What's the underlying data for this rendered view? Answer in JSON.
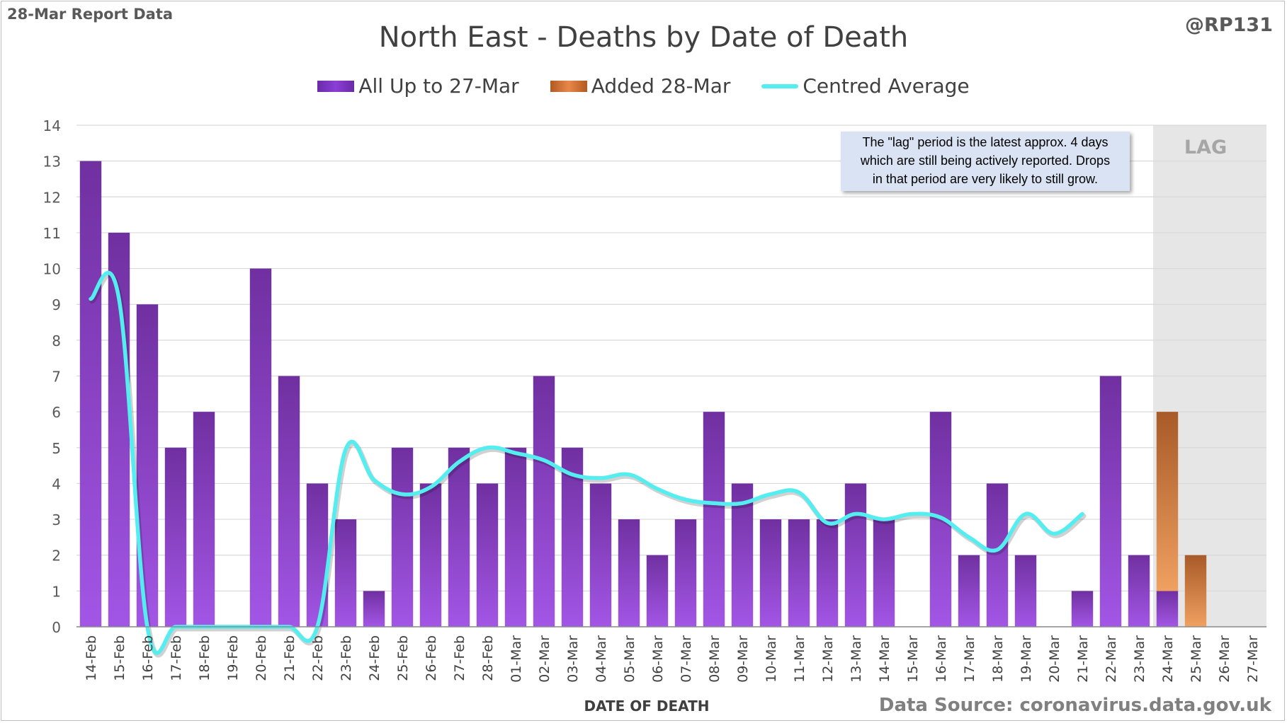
{
  "header": {
    "report_label": "28-Mar Report Data",
    "handle": "@RP131"
  },
  "footer": {
    "source": "Data Source: coronavirus.data.gov.uk"
  },
  "note": {
    "lines": [
      "The \"lag\" period is the latest approx. 4 days",
      "which are still being actively reported.  Drops",
      "in that period are very likely to still grow."
    ]
  },
  "lag_label": "LAG",
  "colors": {
    "bar_purple_top": "#7030a0",
    "bar_purple_bottom": "#a256e6",
    "bar_orange_top": "#a85a28",
    "bar_orange_bottom": "#f0a060",
    "average_line": "#55eef0",
    "lag_shade": "#e6e6e6",
    "grid": "#d9d9d9"
  },
  "chart_data": {
    "type": "bar",
    "title": "North East - Deaths by Date of Death",
    "xlabel": "DATE OF DEATH",
    "ylabel": "",
    "ylim": [
      0,
      14
    ],
    "yticks": [
      0,
      1,
      2,
      3,
      4,
      5,
      6,
      7,
      8,
      9,
      10,
      11,
      12,
      13,
      14
    ],
    "grid": true,
    "legend_position": "top-center",
    "lag_categories": [
      "24-Mar",
      "25-Mar",
      "26-Mar",
      "27-Mar"
    ],
    "categories": [
      "14-Feb",
      "15-Feb",
      "16-Feb",
      "17-Feb",
      "18-Feb",
      "19-Feb",
      "20-Feb",
      "21-Feb",
      "22-Feb",
      "23-Feb",
      "24-Feb",
      "25-Feb",
      "26-Feb",
      "27-Feb",
      "28-Feb",
      "01-Mar",
      "02-Mar",
      "03-Mar",
      "04-Mar",
      "05-Mar",
      "06-Mar",
      "07-Mar",
      "08-Mar",
      "09-Mar",
      "10-Mar",
      "11-Mar",
      "12-Mar",
      "13-Mar",
      "14-Mar",
      "15-Mar",
      "16-Mar",
      "17-Mar",
      "18-Mar",
      "19-Mar",
      "20-Mar",
      "21-Mar",
      "22-Mar",
      "23-Mar",
      "24-Mar",
      "25-Mar",
      "26-Mar",
      "27-Mar"
    ],
    "series": [
      {
        "name": "All Up to 27-Mar",
        "kind": "bar",
        "values": [
          13,
          11,
          9,
          5,
          6,
          0,
          10,
          7,
          4,
          3,
          1,
          5,
          4,
          5,
          4,
          5,
          7,
          5,
          4,
          3,
          2,
          3,
          6,
          4,
          3,
          3,
          3,
          4,
          3,
          0,
          6,
          2,
          4,
          2,
          0,
          1,
          7,
          2,
          1,
          0,
          0,
          0
        ]
      },
      {
        "name": "Added 28-Mar",
        "kind": "bar",
        "values": [
          0,
          0,
          0,
          0,
          0,
          0,
          0,
          0,
          0,
          0,
          0,
          0,
          0,
          0,
          0,
          0,
          0,
          0,
          0,
          0,
          0,
          0,
          0,
          0,
          0,
          0,
          0,
          0,
          0,
          0,
          0,
          0,
          0,
          0,
          0,
          0,
          0,
          0,
          5,
          2,
          0,
          0
        ]
      },
      {
        "name": "Centred Average",
        "kind": "line",
        "values": [
          9.15,
          9.15,
          0,
          0,
          0,
          0,
          0,
          0,
          0,
          4.95,
          4.1,
          3.7,
          3.9,
          4.6,
          5.0,
          4.85,
          4.65,
          4.25,
          4.15,
          4.25,
          3.85,
          3.55,
          3.45,
          3.45,
          3.7,
          3.75,
          2.9,
          3.15,
          3.0,
          3.15,
          3.05,
          2.5,
          2.15,
          3.15,
          2.6,
          3.15,
          null,
          null,
          null,
          null,
          null,
          null
        ]
      }
    ]
  }
}
